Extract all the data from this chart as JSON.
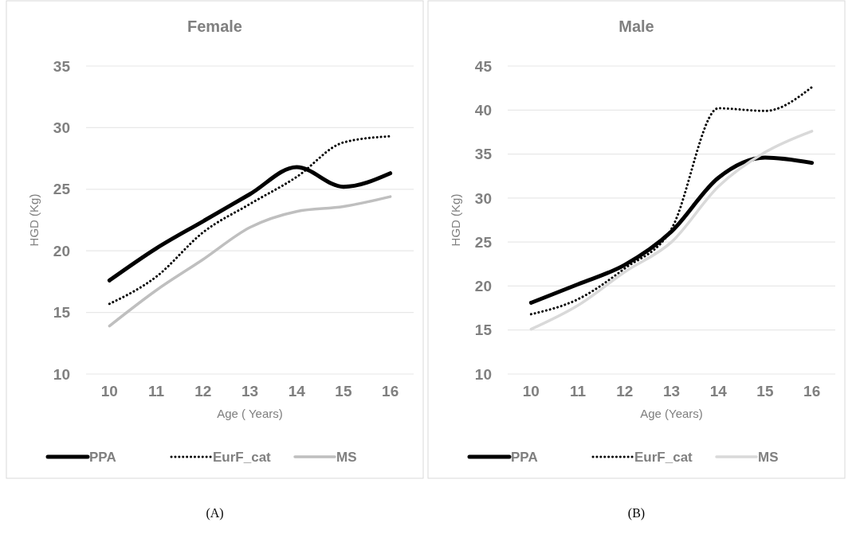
{
  "chart_data": [
    {
      "type": "line",
      "title": "Female",
      "xlabel": "Age ( Years)",
      "ylabel": "HGD (Kg)",
      "categories": [
        "10",
        "11",
        "12",
        "13",
        "14",
        "15",
        "16"
      ],
      "ylim": [
        10,
        35
      ],
      "yticks": [
        10,
        15,
        20,
        25,
        30,
        35
      ],
      "grid": "y",
      "legend": "bottom",
      "annotations": [
        "(A)"
      ],
      "series": [
        {
          "name": "PPA",
          "color": "#000000",
          "line_style": "solid",
          "values": [
            17.6,
            20.2,
            22.4,
            24.6,
            26.8,
            25.2,
            26.3
          ]
        },
        {
          "name": "EurF_cat",
          "color": "#000000",
          "line_style": "dotted",
          "values": [
            15.7,
            17.9,
            21.5,
            23.8,
            26.0,
            28.8,
            29.3
          ]
        },
        {
          "name": "MS",
          "color": "#bfbfbf",
          "line_style": "solid",
          "values": [
            13.9,
            16.8,
            19.3,
            21.9,
            23.2,
            23.6,
            24.4
          ]
        }
      ]
    },
    {
      "type": "line",
      "title": "Male",
      "xlabel": "Age (Years)",
      "ylabel": "HGD (Kg)",
      "categories": [
        "10",
        "11",
        "12",
        "13",
        "14",
        "15",
        "16"
      ],
      "ylim": [
        10,
        45
      ],
      "yticks": [
        10,
        15,
        20,
        25,
        30,
        35,
        40,
        45
      ],
      "grid": "y",
      "legend": "bottom",
      "annotations": [
        "(B)"
      ],
      "series": [
        {
          "name": "PPA",
          "color": "#000000",
          "line_style": "solid",
          "values": [
            18.1,
            20.2,
            22.4,
            26.2,
            32.3,
            34.6,
            34.0
          ]
        },
        {
          "name": "EurF_cat",
          "color": "#000000",
          "line_style": "dotted",
          "values": [
            16.8,
            18.5,
            22.0,
            26.5,
            40.2,
            39.9,
            42.6
          ]
        },
        {
          "name": "MS",
          "color": "#d9d9d9",
          "line_style": "solid",
          "values": [
            15.1,
            17.8,
            21.6,
            25.0,
            31.3,
            35.2,
            37.6
          ]
        }
      ]
    }
  ]
}
